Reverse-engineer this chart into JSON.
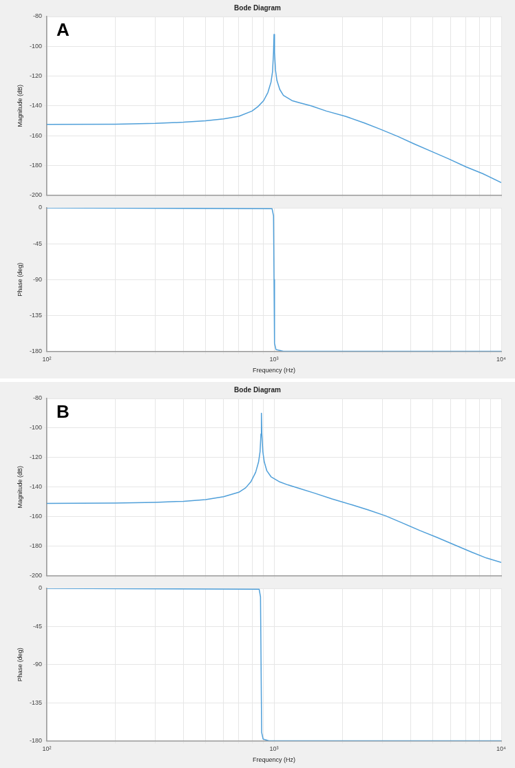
{
  "chart_data": [
    {
      "type": "line",
      "title": "Bode Diagram",
      "ylabel": "Magnitude (dB)",
      "annotations": [
        "A"
      ],
      "xlim": [
        100,
        10000
      ],
      "ylim": [
        -200,
        -80
      ],
      "log": "x",
      "grid": true,
      "tick_labels": "y",
      "marker": "none",
      "line_style": "solid",
      "xticks": [
        {
          "value": 100,
          "label": null
        },
        {
          "value": 200,
          "label": null
        },
        {
          "value": 300,
          "label": null
        },
        {
          "value": 400,
          "label": null
        },
        {
          "value": 500,
          "label": null
        },
        {
          "value": 600,
          "label": null
        },
        {
          "value": 700,
          "label": null
        },
        {
          "value": 800,
          "label": null
        },
        {
          "value": 900,
          "label": null
        },
        {
          "value": 1000,
          "label": null
        },
        {
          "value": 2000,
          "label": null
        },
        {
          "value": 3000,
          "label": null
        },
        {
          "value": 4000,
          "label": null
        },
        {
          "value": 5000,
          "label": null
        },
        {
          "value": 6000,
          "label": null
        },
        {
          "value": 7000,
          "label": null
        },
        {
          "value": 8000,
          "label": null
        },
        {
          "value": 9000,
          "label": null
        },
        {
          "value": 10000,
          "label": null
        }
      ],
      "yticks": [
        -200,
        -180,
        -160,
        -140,
        -120,
        -100,
        -80
      ],
      "x": [
        100,
        200,
        300,
        400,
        500,
        600,
        700,
        800,
        850,
        900,
        940,
        970,
        985,
        995,
        1000,
        1005,
        1015,
        1030,
        1060,
        1100,
        1200,
        1300,
        1455,
        1700,
        2060,
        2500,
        2917,
        3500,
        4130,
        5000,
        5850,
        7000,
        8280,
        10000
      ],
      "series": [
        {
          "color": "#4f9fd9",
          "values": [
            -152.5,
            -152.3,
            -151.8,
            -151,
            -150,
            -148.8,
            -147,
            -143.5,
            -140.5,
            -136.5,
            -131,
            -124,
            -117,
            -104,
            -92,
            -104,
            -116,
            -123,
            -129,
            -133,
            -136.5,
            -138,
            -140,
            -143.5,
            -147,
            -151.5,
            -155.5,
            -160.5,
            -165.5,
            -171,
            -175.5,
            -181,
            -185.5,
            -191.5
          ]
        }
      ]
    },
    {
      "type": "line",
      "xlabel": "Frequency (Hz)",
      "ylabel": "Phase (deg)",
      "xlim": [
        100,
        10000
      ],
      "ylim": [
        -180,
        0
      ],
      "log": "x",
      "grid": true,
      "marker": "none",
      "line_style": "solid",
      "xticks": [
        {
          "value": 100,
          "label": "10²"
        },
        {
          "value": 200,
          "label": null
        },
        {
          "value": 300,
          "label": null
        },
        {
          "value": 400,
          "label": null
        },
        {
          "value": 500,
          "label": null
        },
        {
          "value": 600,
          "label": null
        },
        {
          "value": 700,
          "label": null
        },
        {
          "value": 800,
          "label": null
        },
        {
          "value": 900,
          "label": null
        },
        {
          "value": 1000,
          "label": "10³"
        },
        {
          "value": 2000,
          "label": null
        },
        {
          "value": 3000,
          "label": null
        },
        {
          "value": 4000,
          "label": null
        },
        {
          "value": 5000,
          "label": null
        },
        {
          "value": 6000,
          "label": null
        },
        {
          "value": 7000,
          "label": null
        },
        {
          "value": 8000,
          "label": null
        },
        {
          "value": 9000,
          "label": null
        },
        {
          "value": 10000,
          "label": "10⁴"
        }
      ],
      "yticks": [
        -180,
        -135,
        -90,
        -45,
        0
      ],
      "x": [
        100,
        980,
        995,
        1000,
        1005,
        1020,
        1100,
        10000
      ],
      "series": [
        {
          "color": "#4f9fd9",
          "values": [
            0,
            -1,
            -10,
            -90,
            -170,
            -178,
            -180,
            -180
          ]
        }
      ]
    },
    {
      "type": "line",
      "title": "Bode Diagram",
      "ylabel": "Magnitude (dB)",
      "annotations": [
        "B"
      ],
      "xlim": [
        100,
        10000
      ],
      "ylim": [
        -200,
        -80
      ],
      "log": "x",
      "grid": true,
      "tick_labels": "y",
      "marker": "none",
      "line_style": "solid",
      "xticks": [
        {
          "value": 100,
          "label": null
        },
        {
          "value": 200,
          "label": null
        },
        {
          "value": 300,
          "label": null
        },
        {
          "value": 400,
          "label": null
        },
        {
          "value": 500,
          "label": null
        },
        {
          "value": 600,
          "label": null
        },
        {
          "value": 700,
          "label": null
        },
        {
          "value": 800,
          "label": null
        },
        {
          "value": 900,
          "label": null
        },
        {
          "value": 1000,
          "label": null
        },
        {
          "value": 2000,
          "label": null
        },
        {
          "value": 3000,
          "label": null
        },
        {
          "value": 4000,
          "label": null
        },
        {
          "value": 5000,
          "label": null
        },
        {
          "value": 6000,
          "label": null
        },
        {
          "value": 7000,
          "label": null
        },
        {
          "value": 8000,
          "label": null
        },
        {
          "value": 9000,
          "label": null
        },
        {
          "value": 10000,
          "label": null
        }
      ],
      "yticks": [
        -200,
        -180,
        -160,
        -140,
        -120,
        -100,
        -80
      ],
      "x": [
        100,
        200,
        300,
        400,
        500,
        600,
        700,
        750,
        790,
        830,
        855,
        868,
        876,
        880,
        884,
        893,
        906,
        930,
        970,
        1060,
        1150,
        1300,
        1500,
        1800,
        2200,
        2600,
        3100,
        3700,
        4400,
        5200,
        6200,
        7400,
        8600,
        10000
      ],
      "series": [
        {
          "color": "#4f9fd9",
          "values": [
            -151,
            -150.8,
            -150.3,
            -149.6,
            -148.5,
            -146.5,
            -143.5,
            -140.5,
            -136.5,
            -130,
            -123,
            -116,
            -104,
            -90,
            -104,
            -116,
            -123,
            -129,
            -133,
            -136.5,
            -138.5,
            -141,
            -144,
            -148,
            -152,
            -155.5,
            -159.5,
            -164.5,
            -169.5,
            -174,
            -179,
            -184,
            -188,
            -191
          ]
        }
      ]
    },
    {
      "type": "line",
      "xlabel": "Frequency (Hz)",
      "ylabel": "Phase (deg)",
      "xlim": [
        100,
        10000
      ],
      "ylim": [
        -180,
        0
      ],
      "log": "x",
      "grid": true,
      "marker": "none",
      "line_style": "solid",
      "xticks": [
        {
          "value": 100,
          "label": "10²"
        },
        {
          "value": 200,
          "label": null
        },
        {
          "value": 300,
          "label": null
        },
        {
          "value": 400,
          "label": null
        },
        {
          "value": 500,
          "label": null
        },
        {
          "value": 600,
          "label": null
        },
        {
          "value": 700,
          "label": null
        },
        {
          "value": 800,
          "label": null
        },
        {
          "value": 900,
          "label": null
        },
        {
          "value": 1000,
          "label": "10³"
        },
        {
          "value": 2000,
          "label": null
        },
        {
          "value": 3000,
          "label": null
        },
        {
          "value": 4000,
          "label": null
        },
        {
          "value": 5000,
          "label": null
        },
        {
          "value": 6000,
          "label": null
        },
        {
          "value": 7000,
          "label": null
        },
        {
          "value": 8000,
          "label": null
        },
        {
          "value": 9000,
          "label": null
        },
        {
          "value": 10000,
          "label": "10⁴"
        }
      ],
      "yticks": [
        -180,
        -135,
        -90,
        -45,
        0
      ],
      "x": [
        100,
        860,
        872,
        877,
        882,
        895,
        950,
        10000
      ],
      "series": [
        {
          "color": "#4f9fd9",
          "values": [
            0,
            -1,
            -10,
            -90,
            -170,
            -178,
            -180,
            -180
          ]
        }
      ]
    }
  ]
}
